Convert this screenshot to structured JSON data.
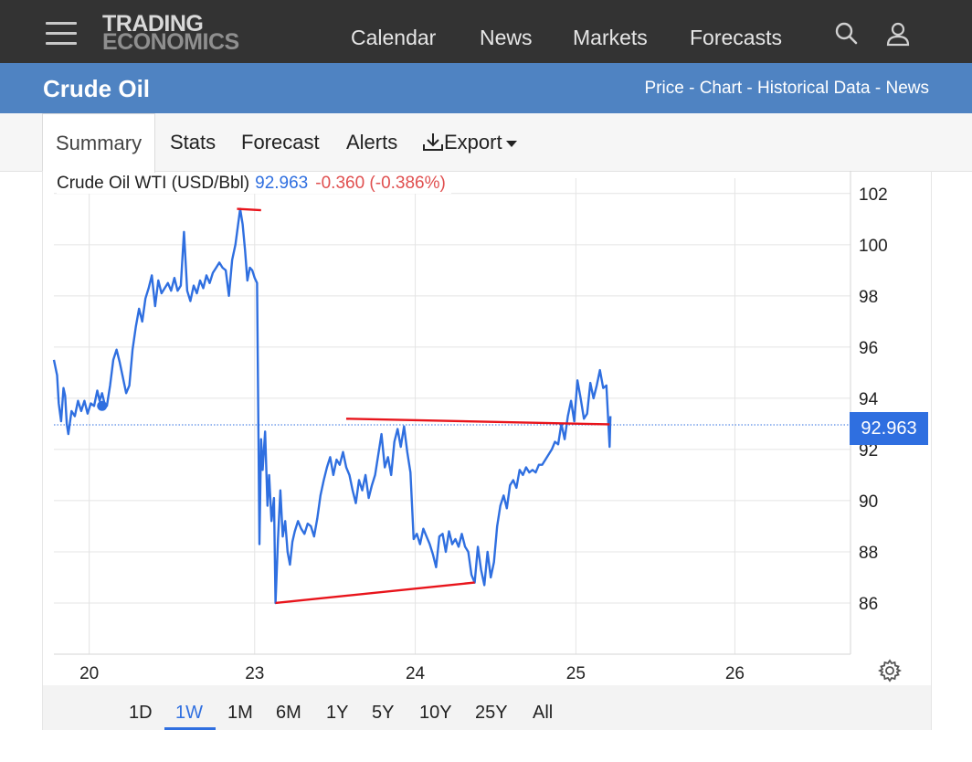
{
  "topnav": {
    "logo_line1": "TRADING",
    "logo_line2": "ECONOMICS",
    "links": [
      "Calendar",
      "News",
      "Markets",
      "Forecasts"
    ],
    "search_icon": "search-icon",
    "user_icon": "user-icon",
    "menu_icon": "hamburger-menu-icon"
  },
  "header": {
    "title": "Crude Oil",
    "sublinks": [
      "Price",
      "Chart",
      "Historical Data",
      "News"
    ],
    "separator": " - "
  },
  "tabs": {
    "summary": "Summary",
    "stats": "Stats",
    "forecast": "Forecast",
    "alerts": "Alerts",
    "export": "Export"
  },
  "legend": {
    "series": "Crude Oil WTI (USD/Bbl)",
    "price": "92.963",
    "change": "-0.360 (-0.386%)"
  },
  "price_tag": "92.963",
  "ranges": [
    "1D",
    "1W",
    "1M",
    "6M",
    "1Y",
    "5Y",
    "10Y",
    "25Y",
    "All"
  ],
  "active_range": "1W",
  "colors": {
    "nav_bg": "#333333",
    "title_bg": "#4f83c2",
    "line": "#2f6fe0",
    "trend": "#e8141b",
    "negative": "#e05050"
  },
  "chart_data": {
    "type": "line",
    "series_name": "Crude Oil WTI (USD/Bbl)",
    "x_ticks": [
      {
        "label": "20",
        "x": 0.72
      },
      {
        "label": "23",
        "x": 1.75
      },
      {
        "label": "24",
        "x": 2.75
      },
      {
        "label": "25",
        "x": 3.75
      },
      {
        "label": "26",
        "x": 4.74
      }
    ],
    "xlim": [
      0.5,
      5.46
    ],
    "ylim": [
      84,
      102.6
    ],
    "y_ticks": [
      86,
      88,
      90,
      92,
      94,
      96,
      98,
      100,
      102
    ],
    "last_value": 92.963,
    "grid": true,
    "points": [
      [
        0.5,
        95.5
      ],
      [
        0.52,
        94.9
      ],
      [
        0.53,
        93.8
      ],
      [
        0.545,
        93.1
      ],
      [
        0.56,
        94.4
      ],
      [
        0.57,
        94.1
      ],
      [
        0.58,
        93.0
      ],
      [
        0.59,
        92.6
      ],
      [
        0.61,
        93.5
      ],
      [
        0.63,
        93.3
      ],
      [
        0.65,
        93.9
      ],
      [
        0.67,
        93.5
      ],
      [
        0.69,
        93.9
      ],
      [
        0.71,
        93.4
      ],
      [
        0.73,
        93.8
      ],
      [
        0.75,
        93.7
      ],
      [
        0.77,
        94.3
      ],
      [
        0.785,
        93.9
      ],
      [
        0.8,
        94.2
      ],
      [
        0.815,
        93.8
      ],
      [
        0.83,
        93.7
      ],
      [
        0.85,
        94.5
      ],
      [
        0.87,
        95.5
      ],
      [
        0.89,
        95.9
      ],
      [
        0.91,
        95.4
      ],
      [
        0.93,
        94.8
      ],
      [
        0.95,
        94.2
      ],
      [
        0.97,
        94.5
      ],
      [
        0.99,
        95.9
      ],
      [
        1.01,
        96.8
      ],
      [
        1.03,
        97.5
      ],
      [
        1.05,
        97.0
      ],
      [
        1.07,
        97.9
      ],
      [
        1.09,
        98.3
      ],
      [
        1.11,
        98.8
      ],
      [
        1.13,
        97.6
      ],
      [
        1.15,
        98.6
      ],
      [
        1.17,
        98.1
      ],
      [
        1.19,
        98.3
      ],
      [
        1.21,
        98.5
      ],
      [
        1.23,
        98.2
      ],
      [
        1.25,
        98.7
      ],
      [
        1.27,
        98.2
      ],
      [
        1.29,
        98.4
      ],
      [
        1.31,
        100.5
      ],
      [
        1.33,
        98.2
      ],
      [
        1.35,
        97.8
      ],
      [
        1.37,
        98.4
      ],
      [
        1.39,
        98.1
      ],
      [
        1.41,
        98.6
      ],
      [
        1.43,
        98.3
      ],
      [
        1.45,
        98.8
      ],
      [
        1.47,
        98.5
      ],
      [
        1.49,
        98.9
      ],
      [
        1.51,
        99.1
      ],
      [
        1.53,
        99.3
      ],
      [
        1.55,
        99.1
      ],
      [
        1.57,
        99.0
      ],
      [
        1.59,
        98.0
      ],
      [
        1.61,
        99.4
      ],
      [
        1.63,
        100.0
      ],
      [
        1.645,
        100.7
      ],
      [
        1.66,
        101.4
      ],
      [
        1.675,
        100.8
      ],
      [
        1.69,
        99.8
      ],
      [
        1.705,
        98.6
      ],
      [
        1.72,
        99.1
      ],
      [
        1.735,
        99.0
      ],
      [
        1.75,
        98.7
      ],
      [
        1.765,
        98.5
      ],
      [
        1.78,
        88.3
      ],
      [
        1.79,
        92.4
      ],
      [
        1.8,
        91.2
      ],
      [
        1.815,
        92.7
      ],
      [
        1.83,
        89.8
      ],
      [
        1.84,
        91.0
      ],
      [
        1.855,
        89.2
      ],
      [
        1.87,
        90.1
      ],
      [
        1.88,
        86.0
      ],
      [
        1.895,
        88.5
      ],
      [
        1.91,
        90.4
      ],
      [
        1.925,
        88.6
      ],
      [
        1.94,
        89.2
      ],
      [
        1.955,
        88.0
      ],
      [
        1.97,
        87.5
      ],
      [
        1.985,
        88.4
      ],
      [
        2.0,
        88.8
      ],
      [
        2.02,
        89.2
      ],
      [
        2.04,
        88.9
      ],
      [
        2.06,
        88.7
      ],
      [
        2.08,
        89.1
      ],
      [
        2.1,
        89.0
      ],
      [
        2.12,
        88.6
      ],
      [
        2.14,
        89.3
      ],
      [
        2.16,
        90.2
      ],
      [
        2.18,
        90.8
      ],
      [
        2.2,
        91.3
      ],
      [
        2.22,
        91.7
      ],
      [
        2.24,
        91.0
      ],
      [
        2.26,
        91.6
      ],
      [
        2.28,
        91.4
      ],
      [
        2.3,
        91.9
      ],
      [
        2.32,
        91.3
      ],
      [
        2.34,
        91.0
      ],
      [
        2.36,
        90.4
      ],
      [
        2.38,
        89.9
      ],
      [
        2.4,
        90.8
      ],
      [
        2.42,
        90.4
      ],
      [
        2.44,
        91.0
      ],
      [
        2.46,
        90.1
      ],
      [
        2.48,
        90.6
      ],
      [
        2.5,
        91.0
      ],
      [
        2.52,
        91.8
      ],
      [
        2.54,
        92.6
      ],
      [
        2.56,
        91.3
      ],
      [
        2.58,
        91.7
      ],
      [
        2.6,
        91.0
      ],
      [
        2.62,
        92.3
      ],
      [
        2.64,
        92.8
      ],
      [
        2.66,
        92.1
      ],
      [
        2.68,
        92.9
      ],
      [
        2.7,
        91.9
      ],
      [
        2.72,
        91.1
      ],
      [
        2.74,
        88.5
      ],
      [
        2.76,
        88.7
      ],
      [
        2.78,
        88.3
      ],
      [
        2.8,
        88.9
      ],
      [
        2.82,
        88.6
      ],
      [
        2.84,
        88.3
      ],
      [
        2.86,
        87.9
      ],
      [
        2.88,
        87.4
      ],
      [
        2.9,
        88.6
      ],
      [
        2.92,
        88.7
      ],
      [
        2.94,
        88.0
      ],
      [
        2.96,
        88.8
      ],
      [
        2.98,
        88.3
      ],
      [
        3.0,
        88.5
      ],
      [
        3.02,
        88.2
      ],
      [
        3.04,
        88.7
      ],
      [
        3.06,
        88.2
      ],
      [
        3.08,
        88.0
      ],
      [
        3.1,
        87.1
      ],
      [
        3.12,
        86.8
      ],
      [
        3.14,
        88.2
      ],
      [
        3.16,
        87.3
      ],
      [
        3.18,
        86.7
      ],
      [
        3.2,
        88.0
      ],
      [
        3.22,
        87.0
      ],
      [
        3.24,
        87.6
      ],
      [
        3.26,
        89.0
      ],
      [
        3.28,
        89.8
      ],
      [
        3.3,
        90.2
      ],
      [
        3.32,
        89.7
      ],
      [
        3.34,
        90.6
      ],
      [
        3.36,
        90.8
      ],
      [
        3.38,
        90.5
      ],
      [
        3.4,
        91.2
      ],
      [
        3.42,
        91.0
      ],
      [
        3.44,
        91.3
      ],
      [
        3.46,
        91.1
      ],
      [
        3.48,
        91.2
      ],
      [
        3.5,
        91.1
      ],
      [
        3.52,
        91.4
      ],
      [
        3.54,
        91.4
      ],
      [
        3.56,
        91.6
      ],
      [
        3.58,
        91.8
      ],
      [
        3.6,
        92.0
      ],
      [
        3.62,
        92.3
      ],
      [
        3.64,
        92.2
      ],
      [
        3.66,
        93.0
      ],
      [
        3.68,
        92.4
      ],
      [
        3.7,
        93.3
      ],
      [
        3.72,
        93.9
      ],
      [
        3.74,
        93.1
      ],
      [
        3.76,
        94.7
      ],
      [
        3.78,
        94.0
      ],
      [
        3.8,
        93.2
      ],
      [
        3.82,
        93.4
      ],
      [
        3.84,
        94.6
      ],
      [
        3.86,
        94.0
      ],
      [
        3.88,
        94.5
      ],
      [
        3.9,
        95.1
      ],
      [
        3.92,
        94.4
      ],
      [
        3.94,
        94.5
      ],
      [
        3.96,
        92.1
      ],
      [
        3.965,
        93.3
      ]
    ],
    "trendlines": [
      {
        "from": [
          1.64,
          101.4
        ],
        "to": [
          1.79,
          101.35
        ]
      },
      {
        "from": [
          1.88,
          86.0
        ],
        "to": [
          3.12,
          86.8
        ]
      },
      {
        "from": [
          2.32,
          93.2
        ],
        "to": [
          3.96,
          92.98
        ]
      }
    ]
  }
}
